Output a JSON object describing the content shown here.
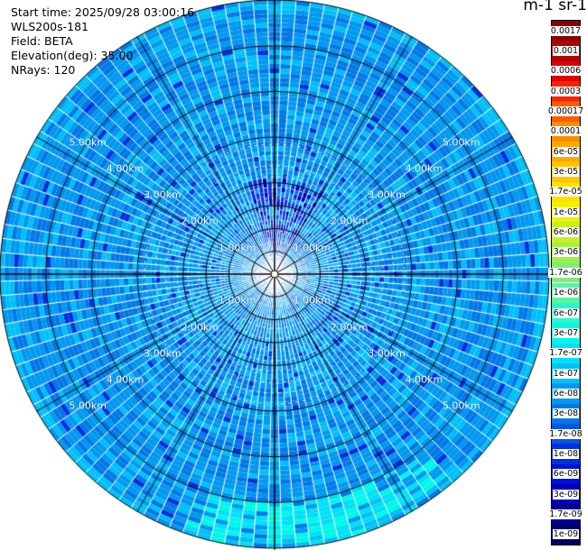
{
  "header": {
    "start_time": "Start time: 2025/09/28 03:00:16",
    "instrument": "WLS200s-181",
    "field": "Field: BETA",
    "elevation": "Elevation(deg): 35.00",
    "nrays": "NRays: 120"
  },
  "colorbar": {
    "title": "m-1 sr-1",
    "levels": [
      {
        "label": "0.0017",
        "color": "#8b0000"
      },
      {
        "label": "0.001",
        "color": "#b30000"
      },
      {
        "label": "0.0006",
        "color": "#dd0000"
      },
      {
        "label": "0.0003",
        "color": "#ff2000"
      },
      {
        "label": "0.00017",
        "color": "#ff5a00"
      },
      {
        "label": "0.0001",
        "color": "#ff8c00"
      },
      {
        "label": "6e-05",
        "color": "#ffa800"
      },
      {
        "label": "3e-05",
        "color": "#ffc400"
      },
      {
        "label": "1.7e-05",
        "color": "#ffe000"
      },
      {
        "label": "1e-05",
        "color": "#f0f000"
      },
      {
        "label": "6e-06",
        "color": "#c8f020"
      },
      {
        "label": "3e-06",
        "color": "#a0f040"
      },
      {
        "label": "1.7e-06",
        "color": "#78f078"
      },
      {
        "label": "1e-06",
        "color": "#50f8a0"
      },
      {
        "label": "6e-07",
        "color": "#28f8c8"
      },
      {
        "label": "3e-07",
        "color": "#00f8e8"
      },
      {
        "label": "1.7e-07",
        "color": "#00e0f8"
      },
      {
        "label": "1e-07",
        "color": "#00c0f8"
      },
      {
        "label": "6e-08",
        "color": "#0098f0"
      },
      {
        "label": "3e-08",
        "color": "#0078e8"
      },
      {
        "label": "1.7e-08",
        "color": "#0058e0"
      },
      {
        "label": "1e-08",
        "color": "#0030e0"
      },
      {
        "label": "6e-09",
        "color": "#0010d8"
      },
      {
        "label": "3e-09",
        "color": "#0000b8"
      },
      {
        "label": "1.7e-09",
        "color": "#000090"
      },
      {
        "label": "1e-09",
        "color": "#000060"
      }
    ]
  },
  "chart_data": {
    "type": "heatmap",
    "projection": "polar-ppi",
    "field": "BETA",
    "units": "m-1 sr-1",
    "n_rays": 120,
    "max_range_km": 6.0,
    "range_ring_labels": [
      "1.00km",
      "2.00km",
      "3.00km",
      "4.00km",
      "5.00km"
    ],
    "ring_values_km": [
      1,
      2,
      3,
      4,
      5
    ],
    "ray_step_deg": 3,
    "grid": true,
    "dominant_level_range": [
      "3e-08",
      "6e-08"
    ],
    "features": [
      {
        "region": "north, 0-2 km",
        "level": "1e-08"
      },
      {
        "region": "south-southeast, 5-6 km",
        "level": "1.7e-07"
      }
    ]
  }
}
